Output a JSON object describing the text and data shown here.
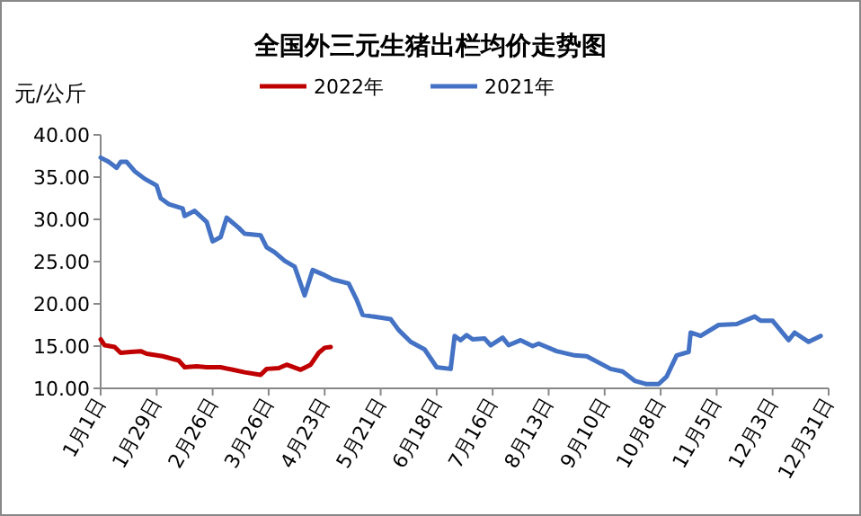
{
  "chart_data": {
    "type": "line",
    "title": "全国外三元生猪出栏均价走势图",
    "ylabel": "元/公斤",
    "xlim": [
      "--01-01",
      "--12-31"
    ],
    "xticks": [
      {
        "value": "--01-01",
        "label": "1月1日"
      },
      {
        "value": "--01-29",
        "label": "1月29日"
      },
      {
        "value": "--02-26",
        "label": "2月26日"
      },
      {
        "value": "--03-26",
        "label": "3月26日"
      },
      {
        "value": "--04-23",
        "label": "4月23日"
      },
      {
        "value": "--05-21",
        "label": "5月21日"
      },
      {
        "value": "--06-18",
        "label": "6月18日"
      },
      {
        "value": "--07-16",
        "label": "7月16日"
      },
      {
        "value": "--08-13",
        "label": "8月13日"
      },
      {
        "value": "--09-10",
        "label": "9月10日"
      },
      {
        "value": "--10-08",
        "label": "10月8日"
      },
      {
        "value": "--11-05",
        "label": "11月5日"
      },
      {
        "value": "--12-03",
        "label": "12月3日"
      },
      {
        "value": "--12-31",
        "label": "12月31日"
      }
    ],
    "ylim": [
      10,
      40
    ],
    "yticks": [
      {
        "value": 10,
        "label": "10.00"
      },
      {
        "value": 15,
        "label": "15.00"
      },
      {
        "value": 20,
        "label": "20.00"
      },
      {
        "value": 25,
        "label": "25.00"
      },
      {
        "value": 30,
        "label": "30.00"
      },
      {
        "value": 35,
        "label": "35.00"
      },
      {
        "value": 40,
        "label": "40.00"
      }
    ],
    "grid": false,
    "legend": "top",
    "marker": "none",
    "line_style": "solid",
    "series": [
      {
        "name": "2022年",
        "color": "#c00000",
        "x": [
          "--01-01",
          "--01-03",
          "--01-08",
          "--01-11",
          "--01-16",
          "--01-21",
          "--01-24",
          "--02-01",
          "--02-09",
          "--02-12",
          "--02-18",
          "--02-23",
          "--03-02",
          "--03-08",
          "--03-14",
          "--03-22",
          "--03-25",
          "--03-31",
          "--04-04",
          "--04-11",
          "--04-16",
          "--04-20",
          "--04-23",
          "--04-26"
        ],
        "values": [
          15.8,
          15.1,
          14.9,
          14.2,
          14.3,
          14.4,
          14.1,
          13.8,
          13.3,
          12.5,
          12.6,
          12.5,
          12.5,
          12.2,
          11.9,
          11.6,
          12.3,
          12.4,
          12.8,
          12.2,
          12.8,
          14.2,
          14.8,
          14.9
        ]
      },
      {
        "name": "2021年",
        "color": "#4472c4",
        "x": [
          "--01-01",
          "--01-05",
          "--01-09",
          "--01-11",
          "--01-14",
          "--01-18",
          "--01-23",
          "--01-29",
          "--01-31",
          "--02-04",
          "--02-11",
          "--02-12",
          "--02-17",
          "--02-23",
          "--02-26",
          "--03-02",
          "--03-05",
          "--03-11",
          "--03-14",
          "--03-22",
          "--03-25",
          "--03-29",
          "--04-03",
          "--04-08",
          "--04-13",
          "--04-17",
          "--04-22",
          "--04-27",
          "--05-05",
          "--05-09",
          "--05-12",
          "--05-17",
          "--05-26",
          "--05-30",
          "--06-05",
          "--06-12",
          "--06-18",
          "--06-25",
          "--06-27",
          "--06-30",
          "--07-03",
          "--07-06",
          "--07-12",
          "--07-15",
          "--07-21",
          "--07-24",
          "--07-30",
          "--08-05",
          "--08-08",
          "--08-17",
          "--08-26",
          "--09-01",
          "--09-13",
          "--09-19",
          "--09-25",
          "--10-01",
          "--10-07",
          "--10-11",
          "--10-16",
          "--10-22",
          "--10-23",
          "--10-28",
          "--11-06",
          "--11-15",
          "--11-24",
          "--11-27",
          "--12-03",
          "--12-11",
          "--12-14",
          "--12-21",
          "--12-27"
        ],
        "values": [
          37.3,
          36.8,
          36.1,
          36.8,
          36.8,
          35.7,
          34.8,
          34.0,
          32.5,
          31.8,
          31.3,
          30.4,
          31.0,
          29.7,
          27.4,
          27.9,
          30.2,
          29.0,
          28.3,
          28.1,
          26.7,
          26.1,
          25.1,
          24.4,
          21.0,
          24.0,
          23.5,
          22.9,
          22.4,
          20.5,
          18.7,
          18.5,
          18.2,
          16.9,
          15.5,
          14.6,
          12.5,
          12.3,
          16.2,
          15.7,
          16.3,
          15.8,
          15.9,
          15.1,
          16.0,
          15.1,
          15.7,
          15.0,
          15.3,
          14.4,
          13.9,
          13.8,
          12.3,
          12.0,
          10.9,
          10.5,
          10.5,
          11.4,
          13.9,
          14.3,
          16.6,
          16.2,
          17.5,
          17.6,
          18.5,
          18.0,
          18.0,
          15.7,
          16.6,
          15.5,
          16.2
        ]
      }
    ]
  }
}
